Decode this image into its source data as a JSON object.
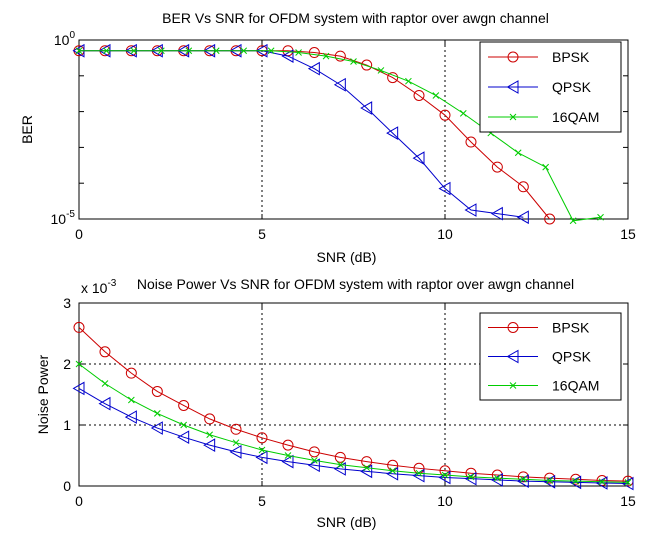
{
  "chart_data": [
    {
      "type": "line",
      "title": "BER Vs SNR for OFDM system with raptor over awgn channel",
      "xlabel": "SNR (dB)",
      "ylabel": "BER",
      "xlim": [
        0,
        15
      ],
      "ylim_exp": [
        -5,
        0
      ],
      "yscale": "log",
      "grid": "dotted",
      "legend_position": "top-right",
      "xticks": [
        "0",
        "5",
        "10",
        "15"
      ],
      "ytick_labels": [
        {
          "base": "10",
          "exp": "0",
          "value": 0
        },
        {
          "base": "10",
          "exp": "-5",
          "value": -5
        }
      ],
      "series": [
        {
          "name": "BPSK",
          "color": "#cc0000",
          "marker": "circle",
          "x": [
            0,
            0.71,
            1.43,
            2.14,
            2.86,
            3.57,
            4.29,
            5.0,
            5.71,
            6.43,
            7.14,
            7.86,
            8.57,
            9.29,
            10.0,
            10.71,
            11.43,
            12.14,
            12.86
          ],
          "y_exp": [
            -0.3,
            -0.3,
            -0.3,
            -0.3,
            -0.3,
            -0.3,
            -0.3,
            -0.3,
            -0.3,
            -0.35,
            -0.45,
            -0.7,
            -1.05,
            -1.55,
            -2.1,
            -2.85,
            -3.55,
            -4.1,
            -5.0
          ]
        },
        {
          "name": "QPSK",
          "color": "#0000cc",
          "marker": "triangle-left",
          "x": [
            0,
            0.71,
            1.43,
            2.14,
            2.86,
            3.57,
            4.29,
            5.0,
            5.71,
            6.43,
            7.14,
            7.86,
            8.57,
            9.29,
            10.0,
            10.71,
            11.43,
            12.14
          ],
          "y_exp": [
            -0.3,
            -0.3,
            -0.3,
            -0.3,
            -0.3,
            -0.3,
            -0.3,
            -0.3,
            -0.45,
            -0.8,
            -1.25,
            -1.9,
            -2.6,
            -3.3,
            -4.15,
            -4.75,
            -4.85,
            -4.95
          ]
        },
        {
          "name": "16QAM",
          "color": "#00cc00",
          "marker": "cross",
          "x": [
            0,
            0.75,
            1.5,
            2.25,
            3.0,
            3.75,
            4.5,
            5.25,
            6.0,
            6.75,
            7.5,
            8.25,
            9.0,
            9.75,
            10.5,
            11.25,
            12.0,
            12.75,
            13.5,
            14.25
          ],
          "y_exp": [
            -0.3,
            -0.3,
            -0.3,
            -0.3,
            -0.3,
            -0.3,
            -0.3,
            -0.3,
            -0.35,
            -0.45,
            -0.6,
            -0.85,
            -1.15,
            -1.55,
            -2.05,
            -2.6,
            -3.15,
            -3.55,
            -5.05,
            -4.95
          ]
        }
      ]
    },
    {
      "type": "line",
      "title": "Noise Power Vs SNR for OFDM system with raptor over awgn channel",
      "xlabel": "SNR (dB)",
      "ylabel": "Noise Power",
      "xlim": [
        0,
        15
      ],
      "ylim": [
        0,
        3
      ],
      "yscale": "linear",
      "y_multiplier": "x 10",
      "y_multiplier_exp": "-3",
      "grid": "dotted",
      "legend_position": "top-right",
      "xticks": [
        "0",
        "5",
        "10",
        "15"
      ],
      "yticks": [
        "0",
        "1",
        "2",
        "3"
      ],
      "series": [
        {
          "name": "BPSK",
          "color": "#cc0000",
          "marker": "circle",
          "x": [
            0,
            0.71,
            1.43,
            2.14,
            2.86,
            3.57,
            4.29,
            5.0,
            5.71,
            6.43,
            7.14,
            7.86,
            8.57,
            9.29,
            10.0,
            10.71,
            11.43,
            12.14,
            12.86,
            13.57,
            14.29,
            15.0
          ],
          "y": [
            2.6,
            2.2,
            1.85,
            1.55,
            1.32,
            1.1,
            0.93,
            0.79,
            0.67,
            0.56,
            0.47,
            0.4,
            0.34,
            0.29,
            0.25,
            0.21,
            0.18,
            0.15,
            0.13,
            0.11,
            0.09,
            0.08
          ]
        },
        {
          "name": "QPSK",
          "color": "#0000cc",
          "marker": "triangle-left",
          "x": [
            0,
            0.71,
            1.43,
            2.14,
            2.86,
            3.57,
            4.29,
            5.0,
            5.71,
            6.43,
            7.14,
            7.86,
            8.57,
            9.29,
            10.0,
            10.71,
            11.43,
            12.14,
            12.86,
            13.57,
            14.29,
            15.0
          ],
          "y": [
            1.6,
            1.35,
            1.13,
            0.95,
            0.8,
            0.67,
            0.56,
            0.47,
            0.4,
            0.34,
            0.28,
            0.24,
            0.2,
            0.17,
            0.14,
            0.12,
            0.1,
            0.08,
            0.07,
            0.06,
            0.05,
            0.04
          ]
        },
        {
          "name": "16QAM",
          "color": "#00cc00",
          "marker": "cross",
          "x": [
            0,
            0.71,
            1.43,
            2.14,
            2.86,
            3.57,
            4.29,
            5.0,
            5.71,
            6.43,
            7.14,
            7.86,
            8.57,
            9.29,
            10.0,
            10.71,
            11.43,
            12.14,
            12.86,
            13.57,
            14.29,
            15.0
          ],
          "y": [
            2.0,
            1.68,
            1.41,
            1.19,
            1.0,
            0.84,
            0.71,
            0.59,
            0.5,
            0.42,
            0.35,
            0.3,
            0.25,
            0.21,
            0.18,
            0.15,
            0.13,
            0.11,
            0.09,
            0.08,
            0.07,
            0.06
          ]
        }
      ]
    }
  ]
}
